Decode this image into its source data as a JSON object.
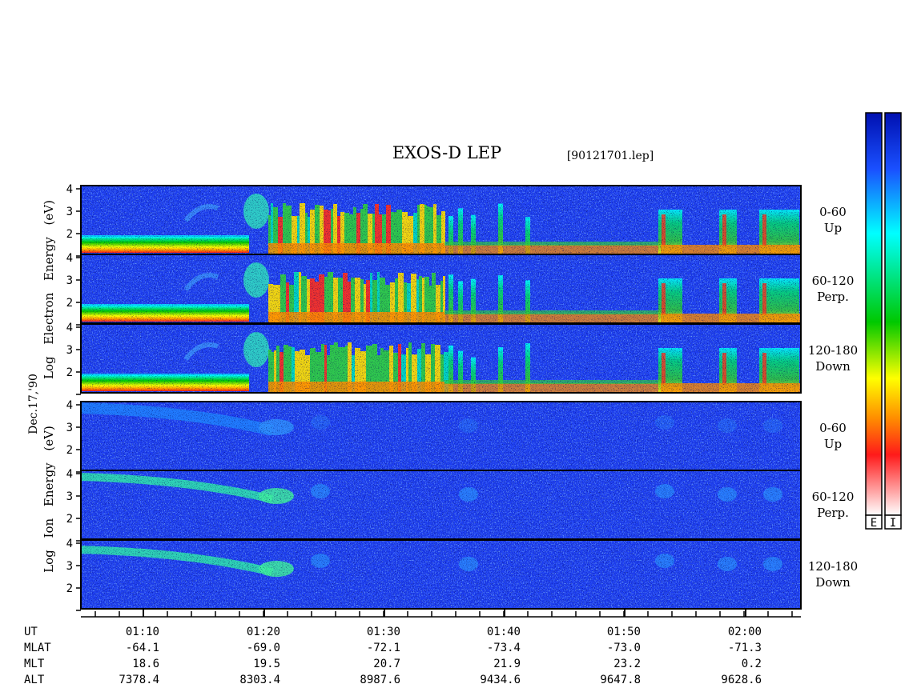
{
  "chart_data": {
    "type": "heatmap",
    "title": "EXOS-D LEP",
    "file_label": "[90121701.lep]",
    "date_label": "Dec.17,'90",
    "y_ticks": [
      "4",
      "3",
      "2",
      "1"
    ],
    "y_range": [
      1,
      4
    ],
    "x_ticks": [
      "01:10",
      "01:20",
      "01:30",
      "01:40",
      "01:50",
      "02:00"
    ],
    "ephemeris": {
      "rows": [
        {
          "label": "UT",
          "values": [
            "01:10",
            "01:20",
            "01:30",
            "01:40",
            "01:50",
            "02:00"
          ]
        },
        {
          "label": "MLAT",
          "values": [
            "-64.1",
            "-69.0",
            "-72.1",
            "-73.4",
            "-73.0",
            "-71.3"
          ]
        },
        {
          "label": "MLT",
          "values": [
            "18.6",
            "19.5",
            "20.7",
            "21.9",
            "23.2",
            "0.2"
          ]
        },
        {
          "label": "ALT",
          "values": [
            "7378.4",
            "8303.4",
            "8987.6",
            "9434.6",
            "9647.8",
            "9628.6"
          ]
        }
      ]
    },
    "groups": [
      {
        "id": "electron",
        "ylabel": "Log Electron Energy (eV)",
        "ylabel_words": [
          "Log",
          "Electron",
          "Energy",
          "(eV)"
        ],
        "panels": [
          {
            "pitch_angle": "0-60",
            "direction": "Up"
          },
          {
            "pitch_angle": "60-120",
            "direction": "Perp."
          },
          {
            "pitch_angle": "120-180",
            "direction": "Down"
          }
        ]
      },
      {
        "id": "ion",
        "ylabel": "Log Ion Energy (eV)",
        "ylabel_words": [
          "Log",
          "Ion",
          "Energy",
          "(eV)"
        ],
        "panels": [
          {
            "pitch_angle": "0-60",
            "direction": "Up"
          },
          {
            "pitch_angle": "60-120",
            "direction": "Perp."
          },
          {
            "pitch_angle": "120-180",
            "direction": "Down"
          }
        ]
      }
    ],
    "colorbars": [
      {
        "id": "electron",
        "label": "E"
      },
      {
        "id": "ion",
        "label": "I"
      }
    ],
    "colormap": [
      "#ffffff",
      "#ff1a1a",
      "#ff8c00",
      "#ffff00",
      "#00c800",
      "#00ffff",
      "#1a50ff",
      "#0010b0"
    ],
    "background_color": "#1d3ef0"
  }
}
